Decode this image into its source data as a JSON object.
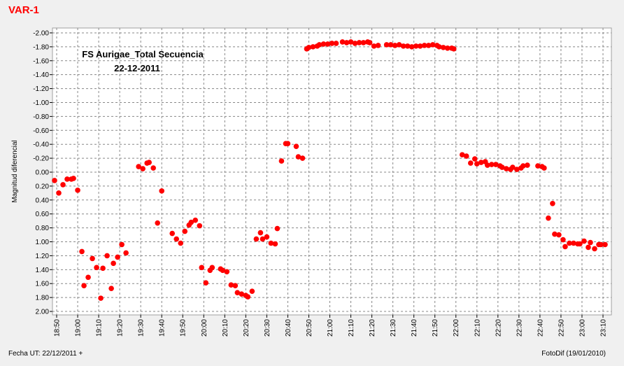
{
  "chart_data": {
    "type": "scatter",
    "title": "VAR-1",
    "annotations": [
      "FS Aurigae_Total Secuencia",
      "22-12-2011"
    ],
    "ylabel": "Magnitud diferencial",
    "footer": [
      "Fecha UT: 22/12/2011 +",
      "FotoDif (19/01/2010)"
    ],
    "color": "#ff0000",
    "grid": true,
    "xlim": [
      "18:48",
      "23:14"
    ],
    "xticks": [
      "18:50",
      "19:00",
      "19:10",
      "19:20",
      "19:30",
      "19:40",
      "19:50",
      "20:00",
      "20:10",
      "20:20",
      "20:30",
      "20:40",
      "20:50",
      "21:00",
      "21:10",
      "21:20",
      "21:30",
      "21:40",
      "21:50",
      "22:00",
      "22:10",
      "22:20",
      "22:30",
      "22:40",
      "22:50",
      "23:00",
      "23:10"
    ],
    "ylim": [
      2.05,
      -2.07
    ],
    "yticks": [
      {
        "value": -2,
        "label": "-2.00"
      },
      {
        "value": -1.8,
        "label": "-1.80"
      },
      {
        "value": -1.6,
        "label": "-1.60"
      },
      {
        "value": -1.4,
        "label": "-1.40"
      },
      {
        "value": -1.2,
        "label": "-1.20"
      },
      {
        "value": -1,
        "label": "-1.00"
      },
      {
        "value": -0.8,
        "label": "-0.80"
      },
      {
        "value": -0.6,
        "label": "-0.60"
      },
      {
        "value": -0.4,
        "label": "-0.40"
      },
      {
        "value": -0.2,
        "label": "-0.20"
      },
      {
        "value": 0,
        "label": "0.00"
      },
      {
        "value": 0.2,
        "label": "0.20"
      },
      {
        "value": 0.4,
        "label": "0.40"
      },
      {
        "value": 0.6,
        "label": "0.60"
      },
      {
        "value": 0.8,
        "label": "0.80"
      },
      {
        "value": 1,
        "label": "1.00"
      },
      {
        "value": 1.2,
        "label": "1.20"
      },
      {
        "value": 1.4,
        "label": "1.40"
      },
      {
        "value": 1.6,
        "label": "1.60"
      },
      {
        "value": 1.8,
        "label": "1.80"
      },
      {
        "value": 2,
        "label": "2.00"
      }
    ],
    "x": [
      "18:49",
      "18:51",
      "18:53",
      "18:55",
      "18:57",
      "18:58",
      "19:00",
      "19:02",
      "19:03",
      "19:05",
      "19:07",
      "19:09",
      "19:11",
      "19:12",
      "19:14",
      "19:16",
      "19:17",
      "19:19",
      "19:21",
      "19:23",
      "19:29",
      "19:31",
      "19:33",
      "19:34",
      "19:36",
      "19:38",
      "19:40",
      "19:45",
      "19:47",
      "19:49",
      "19:51",
      "19:53",
      "19:54",
      "19:56",
      "19:58",
      "19:59",
      "20:01",
      "20:03",
      "20:04",
      "20:08",
      "20:09",
      "20:11",
      "20:13",
      "20:15",
      "20:16",
      "20:18",
      "20:20",
      "20:21",
      "20:23",
      "20:25",
      "20:27",
      "20:28",
      "20:30",
      "20:32",
      "20:34",
      "20:35",
      "20:37",
      "20:39",
      "20:40",
      "20:44",
      "20:45",
      "20:47",
      "20:49",
      "20:50",
      "20:52",
      "20:54",
      "20:55",
      "20:57",
      "20:59",
      "21:01",
      "21:03",
      "21:06",
      "21:08",
      "21:10",
      "21:12",
      "21:14",
      "21:16",
      "21:18",
      "21:19",
      "21:21",
      "21:23",
      "21:27",
      "21:29",
      "21:31",
      "21:33",
      "21:35",
      "21:37",
      "21:39",
      "21:41",
      "21:43",
      "21:45",
      "21:47",
      "21:49",
      "21:51",
      "21:52",
      "21:54",
      "21:56",
      "21:58",
      "21:59",
      "22:03",
      "22:05",
      "22:07",
      "22:09",
      "22:10",
      "22:12",
      "22:14",
      "22:15",
      "22:17",
      "22:19",
      "22:21",
      "22:22",
      "22:24",
      "22:26",
      "22:27",
      "22:29",
      "22:31",
      "22:32",
      "22:34",
      "22:39",
      "22:41",
      "22:42",
      "22:44",
      "22:46",
      "22:47",
      "22:49",
      "22:51",
      "22:52",
      "22:54",
      "22:56",
      "22:58",
      "22:59",
      "23:01",
      "23:03",
      "23:04",
      "23:06",
      "23:08",
      "23:09",
      "23:11"
    ],
    "values": [
      0.12,
      0.3,
      0.18,
      0.1,
      0.1,
      0.09,
      0.26,
      1.14,
      1.63,
      1.51,
      1.24,
      1.37,
      1.81,
      1.38,
      1.2,
      1.67,
      1.31,
      1.22,
      1.04,
      1.16,
      -0.08,
      -0.05,
      -0.13,
      -0.14,
      -0.06,
      0.73,
      0.27,
      0.88,
      0.96,
      1.02,
      0.85,
      0.76,
      0.72,
      0.69,
      0.77,
      1.37,
      1.59,
      1.41,
      1.37,
      1.39,
      1.41,
      1.43,
      1.62,
      1.63,
      1.73,
      1.75,
      1.77,
      1.79,
      1.71,
      0.96,
      0.87,
      0.96,
      0.93,
      1.02,
      1.03,
      0.81,
      -0.16,
      -0.41,
      -0.41,
      -0.37,
      -0.22,
      -0.2,
      -1.77,
      -1.79,
      -1.8,
      -1.81,
      -1.83,
      -1.84,
      -1.84,
      -1.85,
      -1.85,
      -1.87,
      -1.86,
      -1.87,
      -1.85,
      -1.86,
      -1.86,
      -1.87,
      -1.86,
      -1.81,
      -1.82,
      -1.83,
      -1.83,
      -1.82,
      -1.83,
      -1.81,
      -1.81,
      -1.8,
      -1.81,
      -1.81,
      -1.82,
      -1.82,
      -1.83,
      -1.82,
      -1.8,
      -1.79,
      -1.78,
      -1.78,
      -1.77,
      -0.25,
      -0.23,
      -0.13,
      -0.19,
      -0.12,
      -0.14,
      -0.15,
      -0.1,
      -0.11,
      -0.11,
      -0.09,
      -0.07,
      -0.05,
      -0.04,
      -0.07,
      -0.04,
      -0.06,
      -0.09,
      -0.1,
      -0.09,
      -0.08,
      -0.06,
      0.66,
      0.45,
      0.89,
      0.9,
      0.97,
      1.07,
      1.02,
      1.02,
      1.03,
      1.03,
      0.99,
      1.08,
      1.01,
      1.1,
      1.04,
      1.04,
      1.04
    ]
  }
}
